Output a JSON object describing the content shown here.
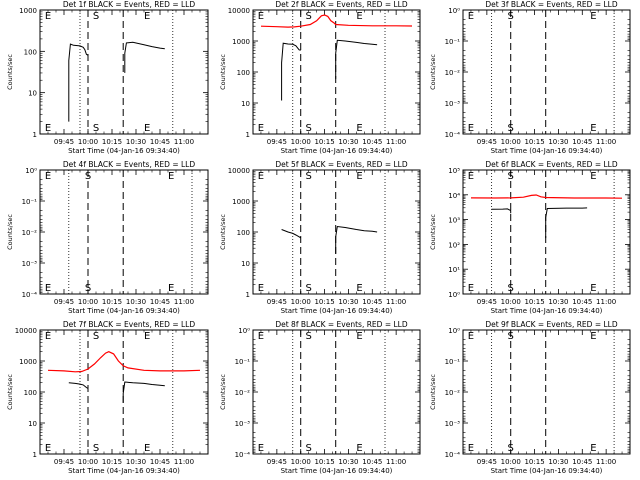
{
  "time_ticks": [
    "09:45",
    "10:00",
    "10:15",
    "10:30",
    "10:45",
    "11:00"
  ],
  "ylabel": "Counts/sec",
  "xlabel": "Start Time (04-Jan-16 09:34:40)",
  "colors": {
    "events": "#000000",
    "lld": "#ff0000"
  },
  "chart_data": [
    {
      "type": "line",
      "panel": 1,
      "title": "Det 1f BLACK = Events, RED = LLD",
      "ytype": "log",
      "ylim": [
        1,
        1000
      ],
      "ytick_labels": [
        "1",
        "10",
        "100",
        "1000"
      ],
      "markers": [
        {
          "label": "E",
          "t": "09:35"
        },
        {
          "label": "S",
          "t": "10:05"
        },
        {
          "label": "E",
          "t": "10:37"
        }
      ],
      "dotted_lines": [
        "09:55",
        "10:53"
      ],
      "dashed_lines": [
        "10:00",
        "10:22"
      ],
      "series": [
        {
          "name": "Events",
          "color": "#000000",
          "segments": [
            [
              [
                "09:48",
                2
              ],
              [
                "09:48",
                60
              ],
              [
                "09:49",
                150
              ],
              [
                "09:51",
                140
              ],
              [
                "09:55",
                135
              ],
              [
                "09:57",
                125
              ],
              [
                "09:58",
                110
              ],
              [
                "09:59",
                85
              ],
              [
                "10:00",
                80
              ]
            ],
            [
              [
                "10:23",
                30
              ],
              [
                "10:23",
                90
              ],
              [
                "10:24",
                160
              ],
              [
                "10:28",
                165
              ],
              [
                "10:35",
                145
              ],
              [
                "10:40",
                130
              ],
              [
                "10:45",
                120
              ],
              [
                "10:48",
                115
              ]
            ]
          ]
        }
      ]
    },
    {
      "type": "line",
      "panel": 2,
      "title": "Det 2f BLACK = Events, RED = LLD",
      "ytype": "log",
      "ylim": [
        1,
        10000
      ],
      "ytick_labels": [
        "1",
        "10",
        "100",
        "1000",
        "10000"
      ],
      "markers": [
        {
          "label": "E",
          "t": "09:35"
        },
        {
          "label": "S",
          "t": "10:05"
        },
        {
          "label": "E",
          "t": "10:37"
        }
      ],
      "dotted_lines": [
        "09:55",
        "10:53"
      ],
      "dashed_lines": [
        "10:00",
        "10:22"
      ],
      "series": [
        {
          "name": "LLD",
          "color": "#ff0000",
          "segments": [
            [
              [
                "09:35",
                3000
              ],
              [
                "09:45",
                2900
              ],
              [
                "09:52",
                2800
              ],
              [
                "09:56",
                2850
              ],
              [
                "10:00",
                3000
              ],
              [
                "10:06",
                3400
              ],
              [
                "10:10",
                4500
              ],
              [
                "10:13",
                6500
              ],
              [
                "10:15",
                6900
              ],
              [
                "10:17",
                6200
              ],
              [
                "10:19",
                4500
              ],
              [
                "10:21",
                3800
              ],
              [
                "10:22",
                3400
              ],
              [
                "10:30",
                3200
              ],
              [
                "10:45",
                3100
              ],
              [
                "11:00",
                3100
              ],
              [
                "11:10",
                3050
              ]
            ]
          ]
        },
        {
          "name": "Events",
          "color": "#000000",
          "segments": [
            [
              [
                "09:48",
                12
              ],
              [
                "09:48",
                200
              ],
              [
                "09:49",
                850
              ],
              [
                "09:52",
                800
              ],
              [
                "09:55",
                780
              ],
              [
                "09:57",
                700
              ],
              [
                "09:59",
                520
              ],
              [
                "10:00",
                500
              ]
            ],
            [
              [
                "10:22",
                60
              ],
              [
                "10:22",
                400
              ],
              [
                "10:23",
                1050
              ],
              [
                "10:28",
                1000
              ],
              [
                "10:35",
                900
              ],
              [
                "10:40",
                830
              ],
              [
                "10:45",
                780
              ],
              [
                "10:48",
                760
              ]
            ]
          ]
        }
      ]
    },
    {
      "type": "line",
      "panel": 3,
      "title": "Det 3f BLACK = Events, RED = LLD",
      "ytype": "log",
      "ylim": [
        1,
        0.0001
      ],
      "ytick_labels": [
        "10⁰",
        "10⁻¹",
        "10⁻²",
        "10⁻³",
        "10⁻⁴"
      ],
      "markers": [
        {
          "label": "E",
          "t": "09:35"
        },
        {
          "label": "S",
          "t": "10:00"
        },
        {
          "label": "E",
          "t": "10:52"
        }
      ],
      "dotted_lines": [
        "09:48",
        "11:05"
      ],
      "dashed_lines": [
        "10:00",
        "10:22"
      ],
      "series": []
    },
    {
      "type": "line",
      "panel": 4,
      "title": "Det 4f BLACK = Events, RED = LLD",
      "ytype": "log",
      "ylim": [
        1,
        0.0001
      ],
      "ytick_labels": [
        "10⁰",
        "10⁻¹",
        "10⁻²",
        "10⁻³",
        "10⁻⁴"
      ],
      "markers": [
        {
          "label": "E",
          "t": "09:35"
        },
        {
          "label": "S",
          "t": "10:00"
        },
        {
          "label": "E",
          "t": "10:52"
        }
      ],
      "dotted_lines": [
        "09:48",
        "11:05"
      ],
      "dashed_lines": [
        "10:00",
        "10:22"
      ],
      "series": []
    },
    {
      "type": "line",
      "panel": 5,
      "title": "Det 5f BLACK = Events, RED = LLD",
      "ytype": "log",
      "ylim": [
        1,
        10000
      ],
      "ytick_labels": [
        "1",
        "10",
        "100",
        "1000",
        "10000"
      ],
      "markers": [
        {
          "label": "E",
          "t": "09:35"
        },
        {
          "label": "S",
          "t": "10:05"
        },
        {
          "label": "E",
          "t": "10:37"
        }
      ],
      "dotted_lines": [
        "09:55",
        "10:53"
      ],
      "dashed_lines": [
        "10:00",
        "10:22"
      ],
      "series": [
        {
          "name": "Events",
          "color": "#000000",
          "segments": [
            [
              [
                "09:48",
                120
              ],
              [
                "09:52",
                100
              ],
              [
                "09:55",
                90
              ],
              [
                "09:57",
                80
              ],
              [
                "09:59",
                70
              ],
              [
                "10:00",
                65
              ]
            ],
            [
              [
                "10:22",
                20
              ],
              [
                "10:22",
                70
              ],
              [
                "10:23",
                150
              ],
              [
                "10:28",
                140
              ],
              [
                "10:35",
                120
              ],
              [
                "10:40",
                110
              ],
              [
                "10:45",
                105
              ],
              [
                "10:48",
                100
              ]
            ]
          ]
        }
      ]
    },
    {
      "type": "line",
      "panel": 6,
      "title": "Det 6f BLACK = Events, RED = LLD",
      "ytype": "log",
      "ylim": [
        1,
        100000
      ],
      "ytick_labels": [
        "10⁰",
        "10¹",
        "10²",
        "10³",
        "10⁴",
        "10⁵"
      ],
      "markers": [
        {
          "label": "E",
          "t": "09:35"
        },
        {
          "label": "S",
          "t": "10:00"
        },
        {
          "label": "E",
          "t": "10:52"
        }
      ],
      "dotted_lines": [
        "09:48",
        "11:05"
      ],
      "dashed_lines": [
        "10:00",
        "10:22"
      ],
      "series": [
        {
          "name": "LLD",
          "color": "#ff0000",
          "segments": [
            [
              [
                "09:35",
                7500
              ],
              [
                "09:50",
                7400
              ],
              [
                "10:00",
                7500
              ],
              [
                "10:08",
                8000
              ],
              [
                "10:13",
                9500
              ],
              [
                "10:16",
                9800
              ],
              [
                "10:19",
                8300
              ],
              [
                "10:22",
                7800
              ],
              [
                "10:40",
                7400
              ],
              [
                "11:00",
                7400
              ],
              [
                "11:10",
                7300
              ]
            ]
          ]
        },
        {
          "name": "Events",
          "color": "#000000",
          "segments": [
            [
              [
                "09:48",
                2600
              ],
              [
                "09:55",
                2650
              ],
              [
                "09:58",
                2700
              ],
              [
                "10:00",
                2300
              ],
              [
                "10:00",
                1800
              ]
            ],
            [
              [
                "10:22",
                180
              ],
              [
                "10:22",
                1200
              ],
              [
                "10:23",
                2800
              ],
              [
                "10:35",
                2900
              ],
              [
                "10:45",
                2900
              ],
              [
                "10:48",
                2950
              ]
            ]
          ]
        }
      ]
    },
    {
      "type": "line",
      "panel": 7,
      "title": "Det 7f BLACK = Events, RED = LLD",
      "ytype": "log",
      "ylim": [
        1,
        10000
      ],
      "ytick_labels": [
        "1",
        "10",
        "100",
        "1000",
        "10000"
      ],
      "markers": [
        {
          "label": "E",
          "t": "09:35"
        },
        {
          "label": "S",
          "t": "10:05"
        },
        {
          "label": "E",
          "t": "10:37"
        }
      ],
      "dotted_lines": [
        "09:55",
        "10:53"
      ],
      "dashed_lines": [
        "10:00",
        "10:22"
      ],
      "series": [
        {
          "name": "LLD",
          "color": "#ff0000",
          "segments": [
            [
              [
                "09:35",
                500
              ],
              [
                "09:45",
                480
              ],
              [
                "09:52",
                450
              ],
              [
                "09:56",
                460
              ],
              [
                "10:00",
                550
              ],
              [
                "10:04",
                800
              ],
              [
                "10:08",
                1300
              ],
              [
                "10:11",
                1800
              ],
              [
                "10:13",
                2000
              ],
              [
                "10:16",
                1700
              ],
              [
                "10:19",
                1000
              ],
              [
                "10:22",
                700
              ],
              [
                "10:25",
                600
              ],
              [
                "10:35",
                500
              ],
              [
                "10:45",
                480
              ],
              [
                "11:00",
                480
              ],
              [
                "11:10",
                500
              ]
            ]
          ]
        },
        {
          "name": "Events",
          "color": "#000000",
          "segments": [
            [
              [
                "09:48",
                200
              ],
              [
                "09:52",
                190
              ],
              [
                "09:55",
                180
              ],
              [
                "09:57",
                170
              ],
              [
                "09:59",
                140
              ],
              [
                "10:00",
                130
              ]
            ],
            [
              [
                "10:22",
                45
              ],
              [
                "10:22",
                90
              ],
              [
                "10:23",
                210
              ],
              [
                "10:28",
                200
              ],
              [
                "10:35",
                190
              ],
              [
                "10:40",
                175
              ],
              [
                "10:45",
                165
              ],
              [
                "10:48",
                160
              ]
            ]
          ]
        }
      ]
    },
    {
      "type": "line",
      "panel": 8,
      "title": "Det 8f BLACK = Events, RED = LLD",
      "ytype": "log",
      "ylim": [
        1,
        0.0001
      ],
      "ytick_labels": [
        "10⁰",
        "10⁻¹",
        "10⁻²",
        "10⁻³",
        "10⁻⁴"
      ],
      "markers": [
        {
          "label": "E",
          "t": "09:35"
        },
        {
          "label": "S",
          "t": "10:05"
        },
        {
          "label": "E",
          "t": "10:37"
        }
      ],
      "dotted_lines": [
        "09:55",
        "10:53"
      ],
      "dashed_lines": [
        "10:00",
        "10:22"
      ],
      "series": []
    },
    {
      "type": "line",
      "panel": 9,
      "title": "Det 9f BLACK = Events, RED = LLD",
      "ytype": "log",
      "ylim": [
        1,
        0.0001
      ],
      "ytick_labels": [
        "10⁰",
        "10⁻¹",
        "10⁻²",
        "10⁻³",
        "10⁻⁴"
      ],
      "markers": [
        {
          "label": "E",
          "t": "09:35"
        },
        {
          "label": "S",
          "t": "10:00"
        },
        {
          "label": "E",
          "t": "10:52"
        }
      ],
      "dotted_lines": [
        "09:48",
        "11:05"
      ],
      "dashed_lines": [
        "10:00",
        "10:22"
      ],
      "series": []
    }
  ]
}
